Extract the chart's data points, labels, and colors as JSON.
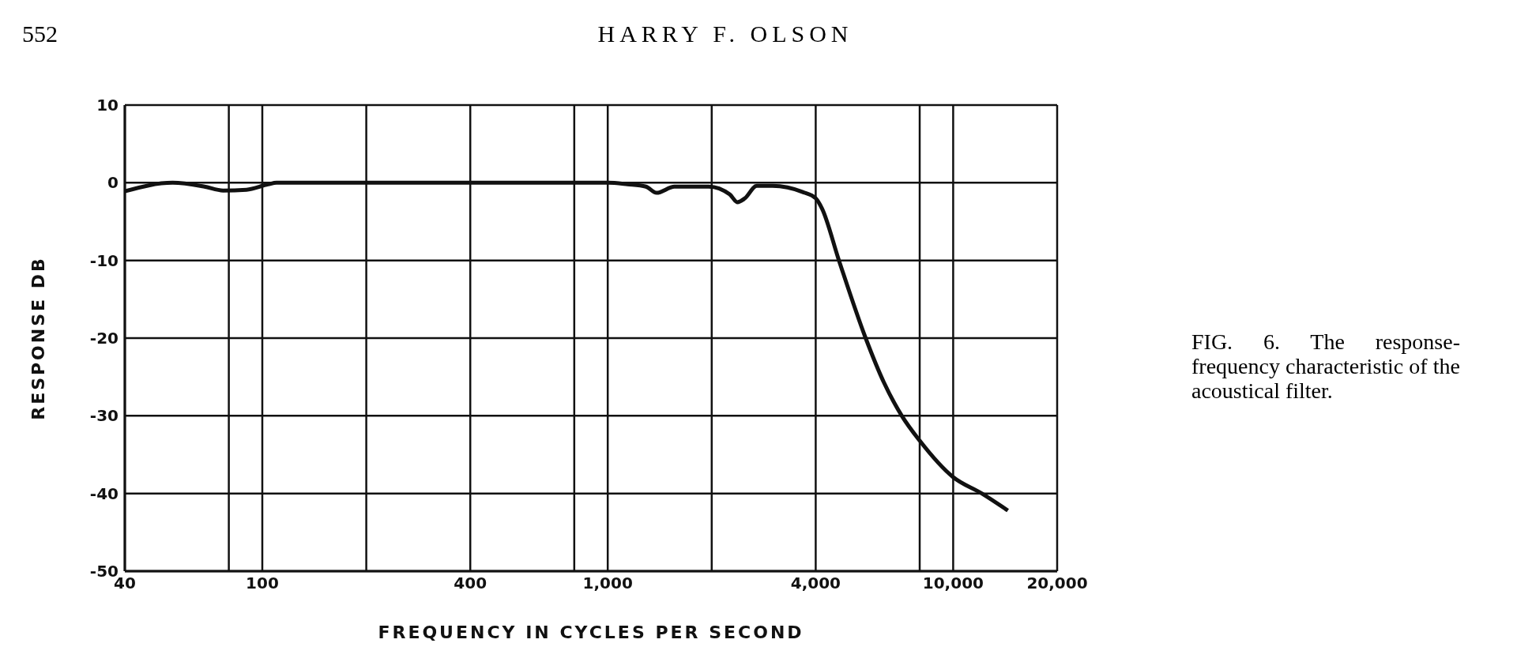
{
  "chart_data": {
    "type": "line",
    "xlabel": "FREQUENCY IN CYCLES PER SECOND",
    "ylabel": "RESPONSE DB",
    "annotations": [
      "552",
      "HARRY F. OLSON",
      "FIG. 6. The response-frequency characteristic of the acoustical filter."
    ],
    "log": "x",
    "grid": true,
    "marker": "none",
    "line_style": "solid",
    "xlim": [
      40,
      20000
    ],
    "xticks": [
      40,
      {
        "value": 80,
        "label": null
      },
      100,
      {
        "value": 200,
        "label": null
      },
      400,
      {
        "value": 800,
        "label": null
      },
      {
        "value": 1000,
        "label": "1,000"
      },
      {
        "value": 2000,
        "label": null
      },
      {
        "value": 4000,
        "label": "4,000"
      },
      {
        "value": 8000,
        "label": null
      },
      {
        "value": 10000,
        "label": "10,000"
      },
      {
        "value": 20000,
        "label": "20,000"
      }
    ],
    "ylim": [
      -50,
      10
    ],
    "yticks": [
      -50,
      -40,
      -30,
      -20,
      -10,
      0,
      10
    ],
    "series": [
      {
        "color": "#111111",
        "x": [
          40,
          55,
          68,
          77,
          90,
          104,
          110,
          400,
          1000,
          1140,
          1290,
          1385,
          1560,
          1830,
          1960,
          2255,
          2375,
          2495,
          2700,
          3000,
          3670,
          4000,
          4170,
          4670,
          5580,
          6300,
          7100,
          8000,
          10000,
          12100,
          14400
        ],
        "values": [
          -1.1,
          0,
          -0.5,
          -1,
          -0.9,
          -0.2,
          0,
          0,
          0,
          -0.2,
          -0.5,
          -1.3,
          -0.5,
          -0.5,
          -0.5,
          -1.5,
          -2.5,
          -2,
          -0.4,
          -0.4,
          -1.2,
          -2,
          -3.3,
          -10,
          -20,
          -25.7,
          -30,
          -33.2,
          -37.9,
          -40,
          -42.2
        ]
      }
    ]
  }
}
